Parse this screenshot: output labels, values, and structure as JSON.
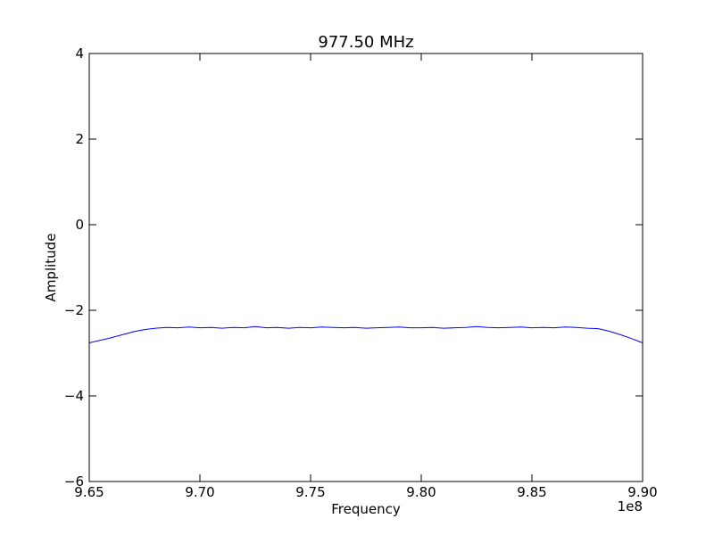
{
  "chart_data": {
    "type": "line",
    "title": "977.50 MHz",
    "xlabel": "Frequency",
    "ylabel": "Amplitude",
    "x_offset_label": "1e8",
    "xlim": [
      9.65,
      9.9
    ],
    "ylim": [
      -6,
      4
    ],
    "x_ticks": [
      9.65,
      9.7,
      9.75,
      9.8,
      9.85,
      9.9
    ],
    "x_tick_labels": [
      "9.65",
      "9.70",
      "9.75",
      "9.80",
      "9.85",
      "9.90"
    ],
    "y_ticks": [
      -6,
      -4,
      -2,
      0,
      2,
      4
    ],
    "y_tick_labels": [
      "−6",
      "−4",
      "−2",
      "0",
      "2",
      "4"
    ],
    "grid": false,
    "series": [
      {
        "color": "#0000ff",
        "x": [
          9.65,
          9.655,
          9.66,
          9.665,
          9.67,
          9.675,
          9.68,
          9.685,
          9.69,
          9.695,
          9.7,
          9.705,
          9.71,
          9.715,
          9.72,
          9.725,
          9.73,
          9.735,
          9.74,
          9.745,
          9.75,
          9.755,
          9.76,
          9.765,
          9.77,
          9.775,
          9.78,
          9.785,
          9.79,
          9.795,
          9.8,
          9.805,
          9.81,
          9.815,
          9.82,
          9.825,
          9.83,
          9.835,
          9.84,
          9.845,
          9.85,
          9.855,
          9.86,
          9.865,
          9.87,
          9.875,
          9.88,
          9.885,
          9.89,
          9.895,
          9.9
        ],
        "y": [
          -2.76,
          -2.7,
          -2.64,
          -2.57,
          -2.5,
          -2.45,
          -2.42,
          -2.4,
          -2.41,
          -2.39,
          -2.41,
          -2.4,
          -2.42,
          -2.4,
          -2.41,
          -2.38,
          -2.41,
          -2.4,
          -2.42,
          -2.4,
          -2.41,
          -2.39,
          -2.4,
          -2.41,
          -2.4,
          -2.42,
          -2.41,
          -2.4,
          -2.39,
          -2.41,
          -2.41,
          -2.4,
          -2.42,
          -2.41,
          -2.4,
          -2.38,
          -2.4,
          -2.41,
          -2.4,
          -2.39,
          -2.41,
          -2.4,
          -2.41,
          -2.39,
          -2.4,
          -2.42,
          -2.43,
          -2.49,
          -2.57,
          -2.66,
          -2.76
        ]
      }
    ]
  }
}
